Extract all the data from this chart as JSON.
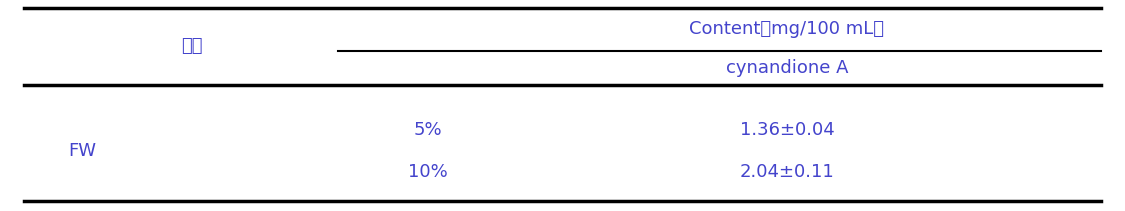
{
  "col1_header": "식혜",
  "col2_header": "Content（mg/100 mL）",
  "col2_subheader": "cynandione A",
  "rows": [
    {
      "group": "FW",
      "concentration": "5%",
      "value": "1.36±0.04"
    },
    {
      "group": "FW",
      "concentration": "10%",
      "value": "2.04±0.11"
    }
  ],
  "text_color": "#4444cc",
  "line_color": "#000000",
  "bg_color": "#ffffff",
  "fontsize": 13
}
